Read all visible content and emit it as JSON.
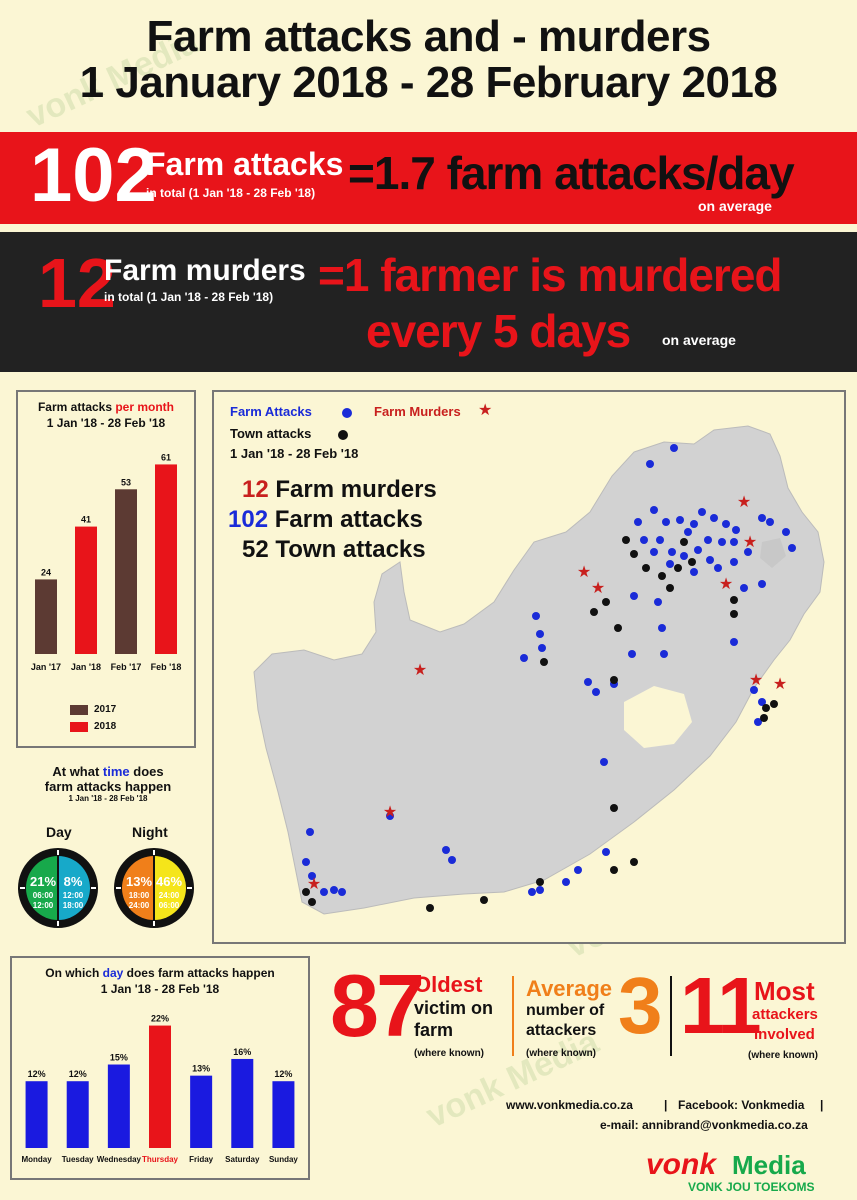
{
  "title": {
    "line1": "Farm attacks and - murders",
    "line2": "1 January 2018 - 28 February 2018"
  },
  "attacks_band": {
    "number": "102",
    "label": "Farm attacks",
    "sub": "in total (1 Jan '18 - 28 Feb '18)",
    "rate": "=1.7 farm attacks/day",
    "rate_note": "on average"
  },
  "murders_band": {
    "number": "12",
    "label": "Farm murders",
    "sub": "in total (1 Jan '18 - 28 Feb '18)",
    "rate_line1": "=1 farmer is murdered",
    "rate_line2": "every 5 days",
    "rate_note": "on average"
  },
  "monthly_chart": {
    "title_part1": "Farm attacks ",
    "title_part2": "per month",
    "subtitle": "1 Jan '18 - 28 Feb '18",
    "legend": [
      {
        "label": "2017",
        "color": "#5c3a33"
      },
      {
        "label": "2018",
        "color": "#e8141a"
      }
    ]
  },
  "time_chart": {
    "title_part1": "At what ",
    "title_part2": "time",
    "title_part3": " does",
    "title_line2": "farm attacks happen",
    "subtitle": "1 Jan '18 - 28 Feb '18",
    "day_label": "Day",
    "night_label": "Night",
    "day": [
      {
        "pct": "21%",
        "from": "06:00",
        "to": "12:00",
        "color": "#17a94b"
      },
      {
        "pct": "8%",
        "from": "12:00",
        "to": "18:00",
        "color": "#17a9c9"
      }
    ],
    "night": [
      {
        "pct": "13%",
        "from": "18:00",
        "to": "24:00",
        "color": "#f07f1a"
      },
      {
        "pct": "46%",
        "from": "24:00",
        "to": "06:00",
        "color": "#f5e51a"
      }
    ]
  },
  "map": {
    "legend_farm_attacks": "Farm Attacks",
    "legend_farm_murders": "Farm Murders",
    "legend_town_attacks": "Town attacks",
    "legend_period": "1 Jan '18 - 28 Feb '18",
    "stat1_num": "12",
    "stat1_label": " Farm murders",
    "stat2_num": "102",
    "stat2_label": " Farm attacks",
    "stat3_num": "52",
    "stat3_label": " Town attacks",
    "colors": {
      "farm_attack": "#1a2bd8",
      "town_attack": "#111111",
      "farm_murder": "#c8201e",
      "land": "#d2d2d2"
    }
  },
  "weekday_chart": {
    "title_part1": "On which ",
    "title_part2": "day",
    "title_part3": " does farm attacks happen",
    "subtitle": "1 Jan '18 - 28 Feb '18"
  },
  "facts": {
    "oldest_num": "87",
    "oldest_title": "Oldest",
    "oldest_l2": "victim on",
    "oldest_l3": "farm",
    "oldest_note": "(where known)",
    "avg_title": "Average",
    "avg_l2": "number of",
    "avg_l3": "attackers",
    "avg_num": "3",
    "avg_note": "(where known)",
    "most_num": "11",
    "most_title": "Most",
    "most_l2": "attackers",
    "most_l3": "involved",
    "most_note": "(where known)"
  },
  "footer": {
    "website": "www.vonkmedia.co.za",
    "sep": "|",
    "facebook": "Facebook: Vonkmedia",
    "email": "e-mail: annibrand@vonkmedia.co.za",
    "logo_part1": "vonk",
    "logo_part2": "Media",
    "tagline": "VONK JOU TOEKOMS"
  },
  "chart_data": [
    {
      "type": "bar",
      "title": "Farm attacks per month",
      "subtitle": "1 Jan '18 - 28 Feb '18",
      "categories": [
        "Jan '17",
        "Jan '18",
        "Feb '17",
        "Feb '18"
      ],
      "values": [
        24,
        41,
        53,
        61
      ],
      "colors": [
        "#5c3a33",
        "#e8141a",
        "#5c3a33",
        "#e8141a"
      ],
      "ylim": [
        0,
        65
      ],
      "legend": "bottom",
      "grid": false
    },
    {
      "type": "bar",
      "title": "On which day does farm attacks happen",
      "subtitle": "1 Jan '18 - 28 Feb '18",
      "categories": [
        "Monday",
        "Tuesday",
        "Wednesday",
        "Thursday",
        "Friday",
        "Saturday",
        "Sunday"
      ],
      "values": [
        12,
        12,
        15,
        22,
        13,
        16,
        12
      ],
      "value_labels": [
        "12%",
        "12%",
        "15%",
        "22%",
        "13%",
        "16%",
        "12%"
      ],
      "colors": [
        "#1a1ae0",
        "#1a1ae0",
        "#1a1ae0",
        "#e8141a",
        "#1a1ae0",
        "#1a1ae0",
        "#1a1ae0"
      ],
      "highlight": "Thursday",
      "ylim": [
        0,
        23
      ],
      "grid": false
    },
    {
      "type": "pie",
      "title": "At what time does farm attacks happen",
      "slices": [
        {
          "label": "06:00-12:00",
          "value": 21
        },
        {
          "label": "12:00-18:00",
          "value": 8
        },
        {
          "label": "18:00-24:00",
          "value": 13
        },
        {
          "label": "24:00-06:00",
          "value": 46
        }
      ]
    }
  ]
}
